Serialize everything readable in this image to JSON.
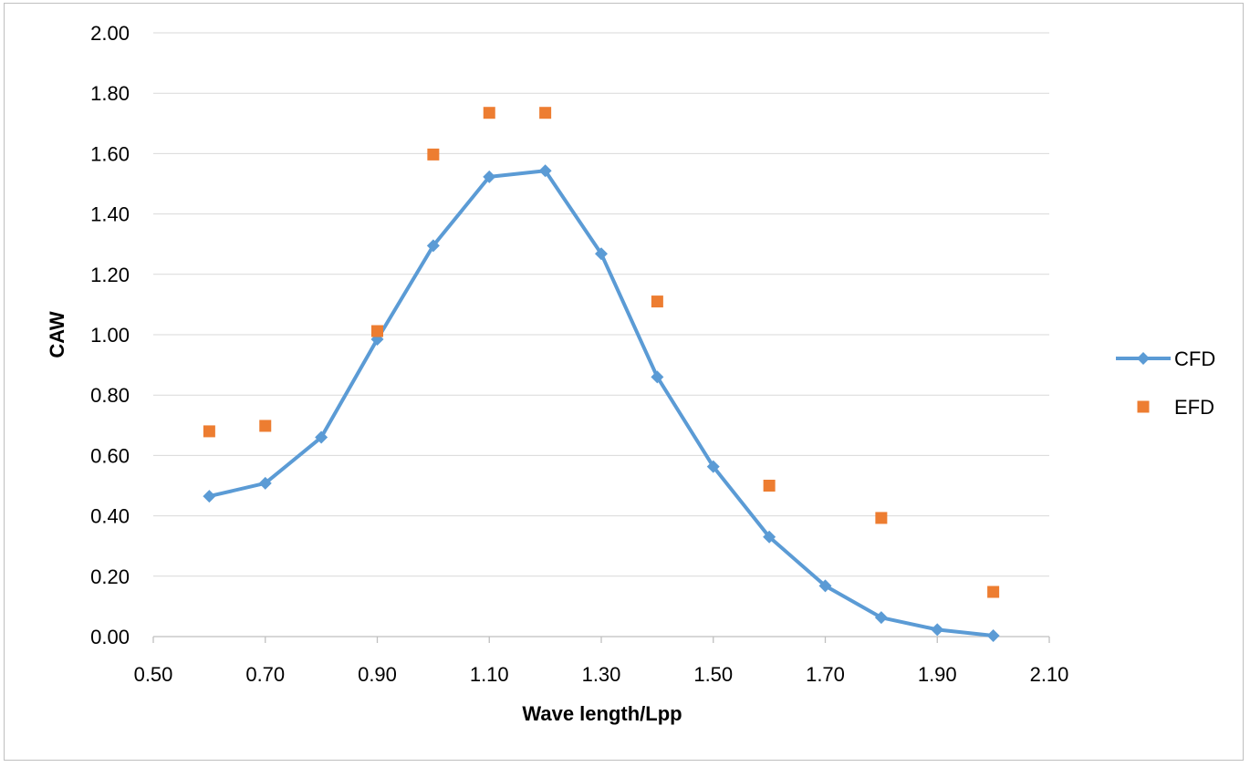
{
  "chart_data": {
    "type": "line",
    "title": "",
    "xlabel": "Wave length/Lpp",
    "ylabel": "CAW",
    "xlim": [
      0.5,
      2.1
    ],
    "ylim": [
      0,
      2.0
    ],
    "x_ticks": [
      0.5,
      0.7,
      0.9,
      1.1,
      1.3,
      1.5,
      1.7,
      1.9,
      2.1
    ],
    "x_tick_labels": [
      "0.50",
      "0.70",
      "0.90",
      "1.10",
      "1.30",
      "1.50",
      "1.70",
      "1.90",
      "2.10"
    ],
    "y_ticks": [
      0,
      0.2,
      0.4,
      0.6,
      0.8,
      1.0,
      1.2,
      1.4,
      1.6,
      1.8,
      2.0
    ],
    "y_tick_labels": [
      "0.00",
      "0.20",
      "0.40",
      "0.60",
      "0.80",
      "1.00",
      "1.20",
      "1.40",
      "1.60",
      "1.80",
      "2.00"
    ],
    "grid": "horizontal",
    "legend_position": "right",
    "series": [
      {
        "name": "CFD",
        "style": "line-with-diamond-markers",
        "color": "#5B9BD5",
        "points": [
          {
            "x": 0.6,
            "y": 0.465
          },
          {
            "x": 0.7,
            "y": 0.508
          },
          {
            "x": 0.8,
            "y": 0.66
          },
          {
            "x": 0.9,
            "y": 0.985
          },
          {
            "x": 1.0,
            "y": 1.295
          },
          {
            "x": 1.1,
            "y": 1.523
          },
          {
            "x": 1.2,
            "y": 1.543
          },
          {
            "x": 1.3,
            "y": 1.268
          },
          {
            "x": 1.4,
            "y": 0.86
          },
          {
            "x": 1.5,
            "y": 0.563
          },
          {
            "x": 1.6,
            "y": 0.33
          },
          {
            "x": 1.7,
            "y": 0.168
          },
          {
            "x": 1.8,
            "y": 0.063
          },
          {
            "x": 1.9,
            "y": 0.023
          },
          {
            "x": 2.0,
            "y": 0.003
          }
        ]
      },
      {
        "name": "EFD",
        "style": "square-markers",
        "color": "#ED7D31",
        "points": [
          {
            "x": 0.6,
            "y": 0.68
          },
          {
            "x": 0.7,
            "y": 0.698
          },
          {
            "x": 0.9,
            "y": 1.012
          },
          {
            "x": 1.0,
            "y": 1.597
          },
          {
            "x": 1.1,
            "y": 1.735
          },
          {
            "x": 1.2,
            "y": 1.735
          },
          {
            "x": 1.4,
            "y": 1.11
          },
          {
            "x": 1.6,
            "y": 0.5
          },
          {
            "x": 1.8,
            "y": 0.393
          },
          {
            "x": 2.0,
            "y": 0.148
          }
        ]
      }
    ]
  }
}
